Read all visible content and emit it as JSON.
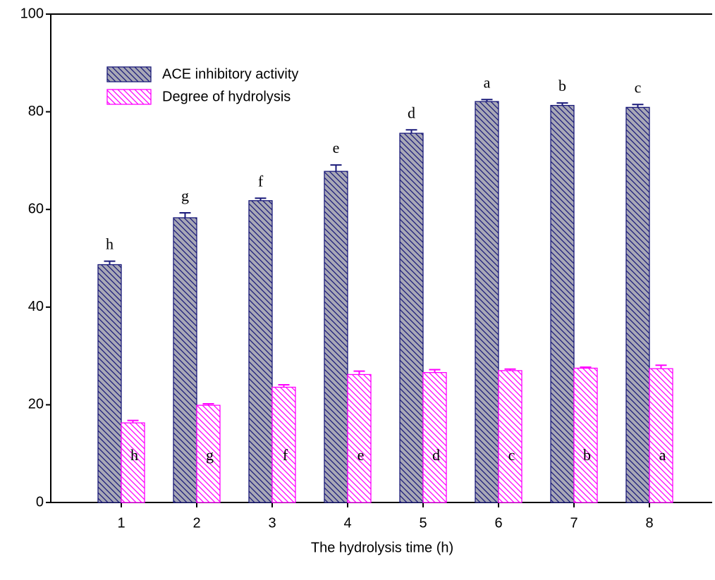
{
  "chart_data": {
    "type": "bar",
    "x_label": "The hydrolysis time (h)",
    "categories": [
      "1",
      "2",
      "3",
      "4",
      "5",
      "6",
      "7",
      "8"
    ],
    "series": [
      {
        "name": "ACE inhibitory activity",
        "color": "#1a1a7a",
        "fill": "#a8a8b6",
        "values": [
          48.7,
          58.3,
          61.8,
          67.8,
          75.6,
          82.1,
          81.3,
          80.9
        ],
        "errors": [
          0.7,
          1.0,
          0.5,
          1.3,
          0.7,
          0.4,
          0.5,
          0.6
        ],
        "annotations": [
          "h",
          "g",
          "f",
          "e",
          "d",
          "a",
          "b",
          "c"
        ]
      },
      {
        "name": "Degree of hydrolysis",
        "color": "#ff00ff",
        "fill": "#ffffff",
        "values": [
          16.3,
          19.9,
          23.6,
          26.2,
          26.6,
          27.0,
          27.5,
          27.4
        ],
        "errors": [
          0.5,
          0.3,
          0.5,
          0.7,
          0.6,
          0.3,
          0.2,
          0.7
        ],
        "annotations": [
          "h",
          "g",
          "f",
          "e",
          "d",
          "c",
          "b",
          "a"
        ]
      }
    ],
    "ylim": [
      0,
      100
    ],
    "yticks": [
      0,
      20,
      40,
      60,
      80,
      100
    ],
    "legend": "upper-left"
  }
}
